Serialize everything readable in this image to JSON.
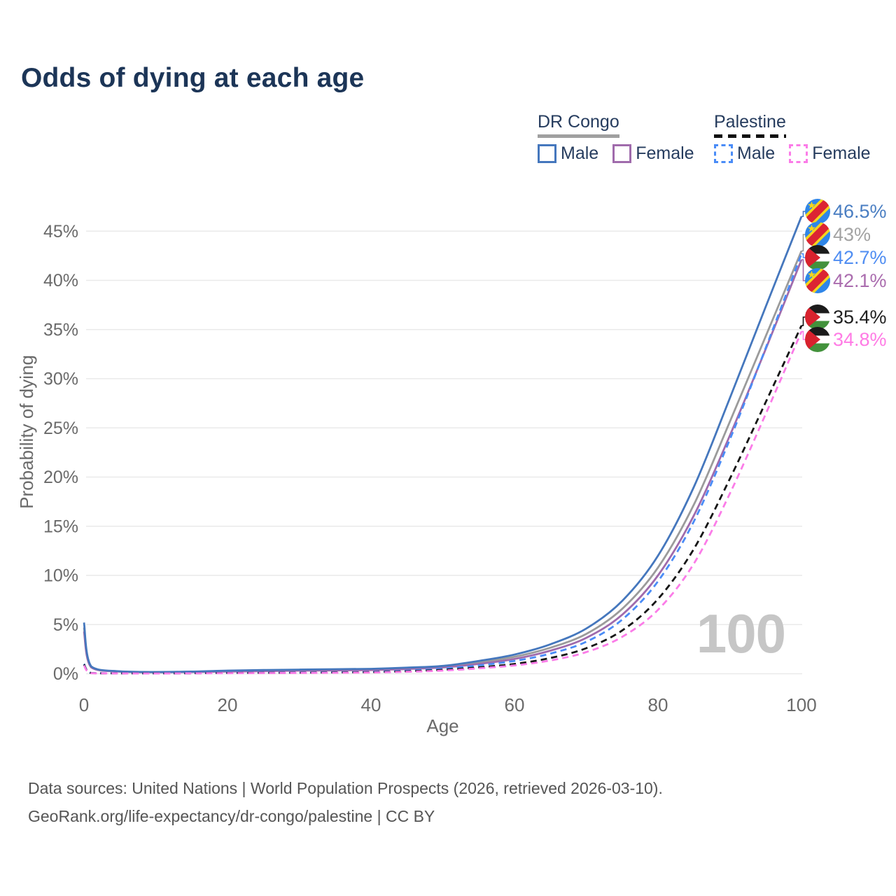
{
  "title": "Odds of dying at each age",
  "watermark": "100",
  "footer": {
    "line1": "Data sources: United Nations | World Population Prospects (2026, retrieved 2026-03-10).",
    "line2": "GeoRank.org/life-expectancy/dr-congo/palestine | CC BY"
  },
  "colors": {
    "title_text": "#1c3557",
    "legend_text": "#263c5e",
    "axis_text": "#6a6a6a",
    "gridline": "#eaeaea",
    "watermark_text": "#c6c6c6",
    "footer_text": "#555555",
    "drc_male": "#4577bd",
    "drc_both": "#9b9b9b",
    "drc_female": "#a06bac",
    "palestine_male": "#4a8cf7",
    "palestine_both": "#151515",
    "palestine_female": "#fb7ce8"
  },
  "legend": {
    "groups": [
      {
        "label": "DR Congo",
        "underline_color": "#a0a0a0",
        "underline_style": "solid",
        "items": [
          {
            "label": "Male",
            "color": "#4577bd",
            "dashed": false
          },
          {
            "label": "Female",
            "color": "#a06bac",
            "dashed": false
          }
        ]
      },
      {
        "label": "Palestine",
        "underline_color": "#111111",
        "underline_style": "dashed",
        "items": [
          {
            "label": "Male",
            "color": "#4a8cf7",
            "dashed": true
          },
          {
            "label": "Female",
            "color": "#fb7ce8",
            "dashed": true
          }
        ]
      }
    ]
  },
  "chart_data": {
    "type": "line",
    "title": "Odds of dying at each age",
    "xlabel": "Age",
    "ylabel": "Probability of dying",
    "xlim": [
      0,
      100
    ],
    "ylim_pct": [
      0,
      47
    ],
    "x_ticks": [
      0,
      20,
      40,
      60,
      80,
      100
    ],
    "y_ticks_pct": [
      0,
      5,
      10,
      15,
      20,
      25,
      30,
      35,
      40,
      45
    ],
    "grid": true,
    "x": [
      0,
      1,
      5,
      10,
      15,
      20,
      25,
      30,
      35,
      40,
      45,
      50,
      55,
      60,
      65,
      70,
      75,
      80,
      85,
      90,
      95,
      100
    ],
    "series": [
      {
        "id": "drc-male",
        "name": "DR Congo — Male",
        "color": "#4577bd",
        "dashed": false,
        "flag": "cd",
        "end_label": "46.5%",
        "label_color": "#4a7ec2",
        "values": [
          5.2,
          0.75,
          0.25,
          0.18,
          0.22,
          0.32,
          0.38,
          0.42,
          0.46,
          0.5,
          0.62,
          0.8,
          1.3,
          1.95,
          3.0,
          4.6,
          7.4,
          12.0,
          19.0,
          28.0,
          37.3,
          46.5
        ]
      },
      {
        "id": "drc-both",
        "name": "DR Congo — Both sexes",
        "color": "#9b9b9b",
        "dashed": false,
        "flag": "cd",
        "end_label": "43%",
        "label_color": "#a3a3a3",
        "values": [
          4.7,
          0.7,
          0.23,
          0.16,
          0.19,
          0.27,
          0.32,
          0.36,
          0.4,
          0.44,
          0.55,
          0.72,
          1.15,
          1.72,
          2.65,
          4.05,
          6.6,
          10.8,
          17.2,
          25.6,
          34.3,
          43.0
        ]
      },
      {
        "id": "palestine-male",
        "name": "Palestine — Male",
        "color": "#4a8cf7",
        "dashed": true,
        "flag": "ps",
        "end_label": "42.7%",
        "label_color": "#4f8df2",
        "values": [
          1.0,
          0.08,
          0.05,
          0.04,
          0.06,
          0.1,
          0.12,
          0.13,
          0.16,
          0.2,
          0.32,
          0.52,
          0.85,
          1.3,
          2.05,
          3.25,
          5.5,
          9.4,
          15.5,
          23.8,
          33.1,
          42.7
        ]
      },
      {
        "id": "drc-female",
        "name": "DR Congo — Female",
        "color": "#a06bac",
        "dashed": false,
        "flag": "cd",
        "end_label": "42.1%",
        "label_color": "#aa6cae",
        "values": [
          4.3,
          0.65,
          0.21,
          0.15,
          0.17,
          0.22,
          0.26,
          0.31,
          0.34,
          0.38,
          0.48,
          0.64,
          1.0,
          1.5,
          2.35,
          3.65,
          6.0,
          10.0,
          16.1,
          24.2,
          33.0,
          42.1
        ]
      },
      {
        "id": "palestine-both",
        "name": "Palestine — Both sexes",
        "color": "#151515",
        "dashed": true,
        "flag": "ps",
        "end_label": "35.4%",
        "label_color": "#1f1f1f",
        "values": [
          0.95,
          0.07,
          0.04,
          0.035,
          0.05,
          0.08,
          0.09,
          0.1,
          0.13,
          0.16,
          0.25,
          0.4,
          0.65,
          1.0,
          1.6,
          2.6,
          4.4,
          7.6,
          12.7,
          19.8,
          27.6,
          35.4
        ]
      },
      {
        "id": "palestine-female",
        "name": "Palestine — Female",
        "color": "#fb7ce8",
        "dashed": true,
        "flag": "ps",
        "end_label": "34.8%",
        "label_color": "#ff7be5",
        "values": [
          0.85,
          0.06,
          0.035,
          0.03,
          0.04,
          0.06,
          0.07,
          0.08,
          0.1,
          0.13,
          0.2,
          0.32,
          0.55,
          0.85,
          1.35,
          2.2,
          3.75,
          6.5,
          11.2,
          18.3,
          26.4,
          34.8
        ]
      }
    ]
  }
}
